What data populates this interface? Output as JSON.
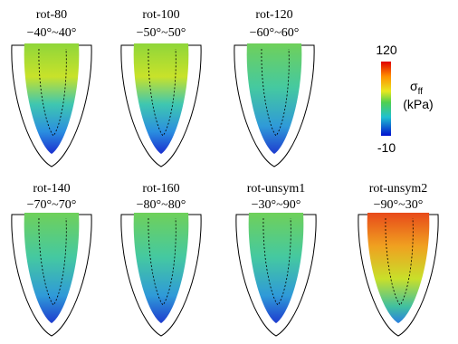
{
  "panels": [
    {
      "name": "rot-80",
      "range": "−40°~40°"
    },
    {
      "name": "rot-100",
      "range": "−50°~50°"
    },
    {
      "name": "rot-120",
      "range": "−60°~60°"
    },
    {
      "name": "rot-140",
      "range": "−70°~70°"
    },
    {
      "name": "rot-160",
      "range": "−80°~80°"
    },
    {
      "name": "rot-unsym1",
      "range": "−30°~90°"
    },
    {
      "name": "rot-unsym2",
      "range": "−90°~30°"
    }
  ],
  "colorbar": {
    "max": 120,
    "min": -10,
    "symbol": "σ",
    "subscript": "ff",
    "unit": "(kPa)"
  }
}
